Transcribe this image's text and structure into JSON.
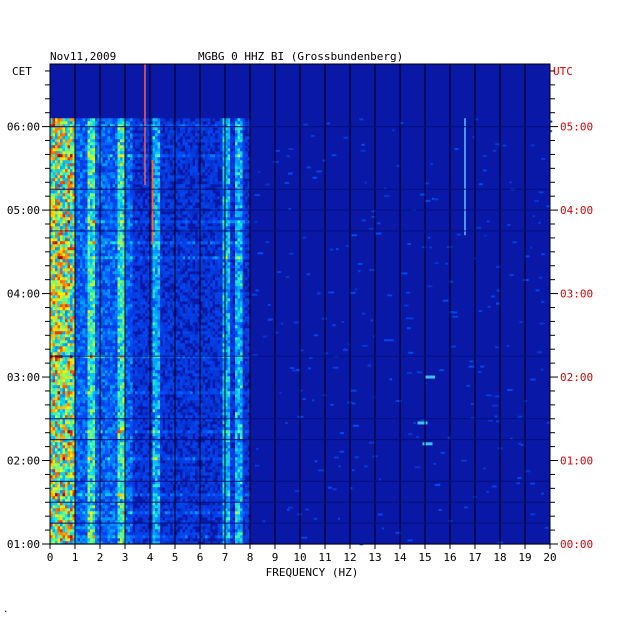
{
  "header": {
    "date": "Nov11,2009",
    "station": "MGBG 0 HHZ BI (Grossbundenberg)"
  },
  "colors": {
    "background": "#ffffff",
    "spectrogram_base": "#0a18a8",
    "cet_axis": "#000000",
    "utc_axis": "#e00000"
  },
  "chart_data": {
    "type": "heatmap",
    "title": "",
    "xlabel": "FREQUENCY (HZ)",
    "ylabel": "",
    "xlim": [
      0,
      20
    ],
    "x_ticks": [
      "0",
      "1",
      "2",
      "3",
      "4",
      "5",
      "6",
      "7",
      "8",
      "9",
      "10",
      "11",
      "12",
      "13",
      "14",
      "15",
      "16",
      "17",
      "18",
      "19",
      "20"
    ],
    "left_axis": {
      "label": "CET",
      "ticks": [
        "01:00",
        "02:00",
        "03:00",
        "04:00",
        "05:00",
        "06:00"
      ]
    },
    "right_axis": {
      "label": "UTC",
      "ticks": [
        "00:00",
        "01:00",
        "02:00",
        "03:00",
        "04:00",
        "05:00"
      ]
    },
    "time_range_cet_hours": [
      1.0,
      6.75
    ],
    "data_start_cet_hours": 6.1,
    "features": {
      "low_freq_band_hz": [
        0.1,
        1.0
      ],
      "broadband_hz_max": 8,
      "spectral_lines_hz": [
        1.6,
        2.8,
        4.2,
        7.0,
        7.5
      ],
      "transient_lines": [
        {
          "freq_hz": 3.8,
          "cet_from": 5.3,
          "cet_to": 6.75
        },
        {
          "freq_hz": 4.1,
          "cet_from": 4.6,
          "cet_to": 5.6
        },
        {
          "freq_hz": 16.6,
          "cet_from": 4.7,
          "cet_to": 6.1
        }
      ],
      "blobs": [
        {
          "freq_hz": 15.1,
          "cet": 2.2
        },
        {
          "freq_hz": 14.9,
          "cet": 2.45
        },
        {
          "freq_hz": 15.2,
          "cet": 3.0
        }
      ]
    }
  },
  "footnote": "."
}
